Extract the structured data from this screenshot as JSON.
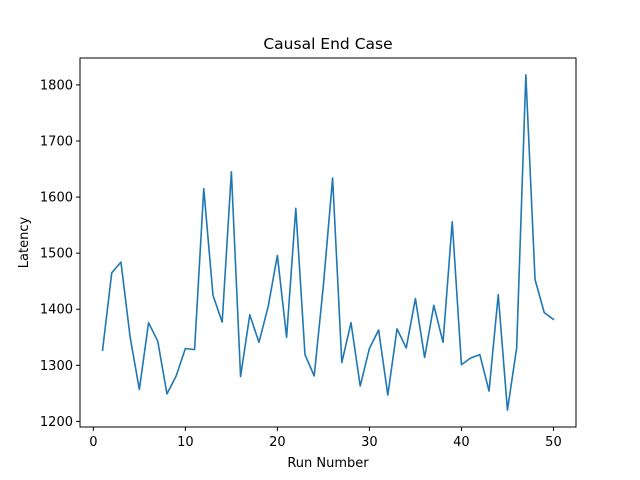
{
  "chart_data": {
    "type": "line",
    "title": "Causal End Case",
    "xlabel": "Run Number",
    "ylabel": "Latency",
    "xlim": [
      -1.45,
      52.45
    ],
    "ylim": [
      1190,
      1848
    ],
    "x_ticks": [
      0,
      10,
      20,
      30,
      40,
      50
    ],
    "y_ticks": [
      1200,
      1300,
      1400,
      1500,
      1600,
      1700,
      1800
    ],
    "grid": false,
    "line_color": "#1f77b4",
    "series": [
      {
        "x": [
          1,
          2,
          3,
          4,
          5,
          6,
          7,
          8,
          9,
          10,
          11,
          12,
          13,
          14,
          15,
          16,
          17,
          18,
          19,
          20,
          21,
          22,
          23,
          24,
          25,
          26,
          27,
          28,
          29,
          30,
          31,
          32,
          33,
          34,
          35,
          36,
          37,
          38,
          39,
          40,
          41,
          42,
          43,
          44,
          45,
          46,
          47,
          48,
          49,
          50
        ],
        "values": [
          1327,
          1465,
          1484,
          1350,
          1257,
          1376,
          1343,
          1249,
          1281,
          1330,
          1328,
          1615,
          1425,
          1377,
          1645,
          1280,
          1390,
          1341,
          1405,
          1496,
          1350,
          1580,
          1319,
          1281,
          1443,
          1634,
          1305,
          1376,
          1263,
          1330,
          1363,
          1247,
          1365,
          1331,
          1419,
          1314,
          1407,
          1341,
          1556,
          1301,
          1313,
          1319,
          1254,
          1426,
          1220,
          1331,
          1818,
          1453,
          1394,
          1382
        ]
      }
    ]
  }
}
